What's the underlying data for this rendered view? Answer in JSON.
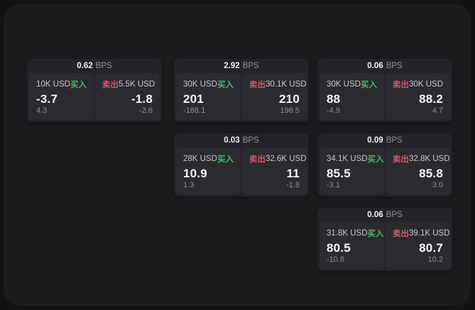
{
  "labels": {
    "bps": "BPS",
    "buy": "买入",
    "sell": "卖出"
  },
  "colors": {
    "background_outer": "#131315",
    "panel_background": "#1c1c1e",
    "card_background": "#242428",
    "pane_background": "#2b2b2f",
    "buy_green": "#4fb271",
    "sell_red": "#c75d6d",
    "price_text": "#f5f5f6",
    "muted_text": "#8d8d93"
  },
  "cards": [
    {
      "bps": "0.62",
      "buy": {
        "amount": "10K USD",
        "price": "-3.7",
        "delta": "4.3"
      },
      "sell": {
        "amount": "5.5K USD",
        "price": "-1.8",
        "delta": "-2.6"
      }
    },
    {
      "bps": "2.92",
      "buy": {
        "amount": "30K USD",
        "price": "201",
        "delta": "-188.1"
      },
      "sell": {
        "amount": "30.1K USD",
        "price": "210",
        "delta": "196.5"
      }
    },
    {
      "bps": "0.06",
      "buy": {
        "amount": "30K USD",
        "price": "88",
        "delta": "-4.9"
      },
      "sell": {
        "amount": "30K USD",
        "price": "88.2",
        "delta": "4.7"
      }
    },
    {
      "bps": "0.03",
      "buy": {
        "amount": "28K USD",
        "price": "10.9",
        "delta": "1.3"
      },
      "sell": {
        "amount": "32.6K USD",
        "price": "11",
        "delta": "-1.8"
      }
    },
    {
      "bps": "0.09",
      "buy": {
        "amount": "34.1K USD",
        "price": "85.5",
        "delta": "-3.1"
      },
      "sell": {
        "amount": "32.8K USD",
        "price": "85.8",
        "delta": "3.0"
      }
    },
    {
      "bps": "0.06",
      "buy": {
        "amount": "31.8K USD",
        "price": "80.5",
        "delta": "-10.8"
      },
      "sell": {
        "amount": "39.1K USD",
        "price": "80.7",
        "delta": "10.2"
      }
    }
  ]
}
